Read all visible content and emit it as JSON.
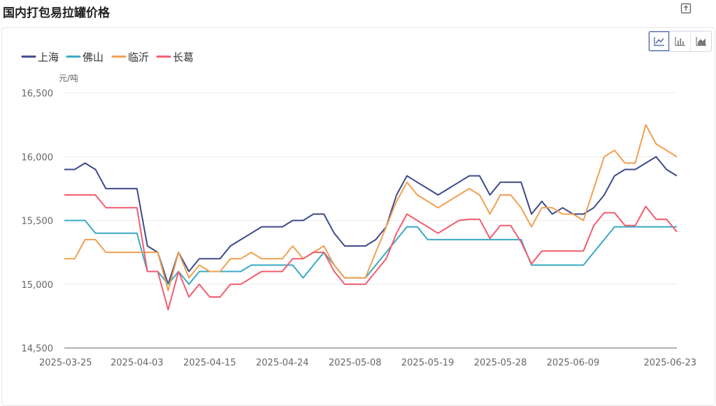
{
  "page": {
    "title": "国内打包易拉罐价格"
  },
  "toolbar": {
    "export_icon": "export-icon",
    "chart_types": [
      "line-chart-icon",
      "bar-chart-icon",
      "area-chart-icon"
    ],
    "active": "line-chart-icon"
  },
  "chart_data": {
    "type": "line",
    "title": "",
    "ylabel": "元/吨",
    "ylim": [
      14500,
      16500
    ],
    "yticks": [
      14500,
      15000,
      15500,
      16000,
      16500
    ],
    "ytick_labels": [
      "14,500",
      "15,000",
      "15,500",
      "16,000",
      "16,500"
    ],
    "xtick_labels": [
      "2025-03-25",
      "2025-04-03",
      "2025-04-15",
      "2025-04-24",
      "2025-05-08",
      "2025-05-19",
      "2025-05-28",
      "2025-06-09",
      "2025-06-23"
    ],
    "xtick_index": [
      0,
      7,
      14,
      21,
      28,
      35,
      42,
      49,
      59
    ],
    "grid": true,
    "legend_position": "top-left",
    "series": [
      {
        "name": "上海",
        "color": "#3d4a8a",
        "values": [
          15900,
          15900,
          15950,
          15900,
          15750,
          15750,
          15750,
          15750,
          15300,
          15250,
          15000,
          15250,
          15100,
          15200,
          15200,
          15200,
          15300,
          15350,
          15400,
          15450,
          15450,
          15450,
          15500,
          15500,
          15550,
          15550,
          15400,
          15300,
          15300,
          15300,
          15350,
          15450,
          15700,
          15850,
          15800,
          15750,
          15700,
          15750,
          15800,
          15850,
          15850,
          15700,
          15800,
          15800,
          15800,
          15550,
          15650,
          15550,
          15600,
          15550,
          15550,
          15600,
          15700,
          15850,
          15900,
          15900,
          15950,
          16000,
          15900,
          15850
        ]
      },
      {
        "name": "佛山",
        "color": "#38a9c4",
        "values": [
          15500,
          15500,
          15500,
          15400,
          15400,
          15400,
          15400,
          15400,
          15100,
          15100,
          15000,
          15100,
          15000,
          15100,
          15100,
          15100,
          15100,
          15100,
          15150,
          15150,
          15150,
          15150,
          15150,
          15050,
          15150,
          15250,
          15150,
          15050,
          15050,
          15050,
          15150,
          15250,
          15350,
          15450,
          15450,
          15350,
          15350,
          15350,
          15350,
          15350,
          15350,
          15350,
          15350,
          15350,
          15350,
          15150,
          15150,
          15150,
          15150,
          15150,
          15150,
          15250,
          15350,
          15450,
          15450,
          15450,
          15450,
          15450,
          15450,
          15450
        ]
      },
      {
        "name": "临沂",
        "color": "#f0a050",
        "values": [
          15200,
          15200,
          15350,
          15350,
          15250,
          15250,
          15250,
          15250,
          15250,
          15250,
          14950,
          15250,
          15050,
          15150,
          15100,
          15100,
          15200,
          15200,
          15250,
          15200,
          15200,
          15200,
          15300,
          15200,
          15250,
          15300,
          15150,
          15050,
          15050,
          15050,
          15250,
          15450,
          15650,
          15800,
          15700,
          15650,
          15600,
          15650,
          15700,
          15750,
          15700,
          15550,
          15700,
          15700,
          15600,
          15450,
          15600,
          15600,
          15550,
          15550,
          15500,
          15750,
          16000,
          16050,
          15950,
          15950,
          16250,
          16100,
          16050,
          16000
        ]
      },
      {
        "name": "长葛",
        "color": "#f25c6e",
        "values": [
          15700,
          15700,
          15700,
          15700,
          15600,
          15600,
          15600,
          15600,
          15100,
          15100,
          14800,
          15100,
          14900,
          15000,
          14900,
          14900,
          15000,
          15000,
          15050,
          15100,
          15100,
          15100,
          15200,
          15200,
          15250,
          15250,
          15100,
          15000,
          15000,
          15000,
          15100,
          15200,
          15400,
          15550,
          15500,
          15450,
          15400,
          15450,
          15500,
          15510,
          15510,
          15360,
          15460,
          15460,
          15330,
          15160,
          15260,
          15260,
          15260,
          15260,
          15260,
          15460,
          15560,
          15560,
          15460,
          15460,
          15610,
          15510,
          15510,
          15410
        ]
      }
    ]
  }
}
